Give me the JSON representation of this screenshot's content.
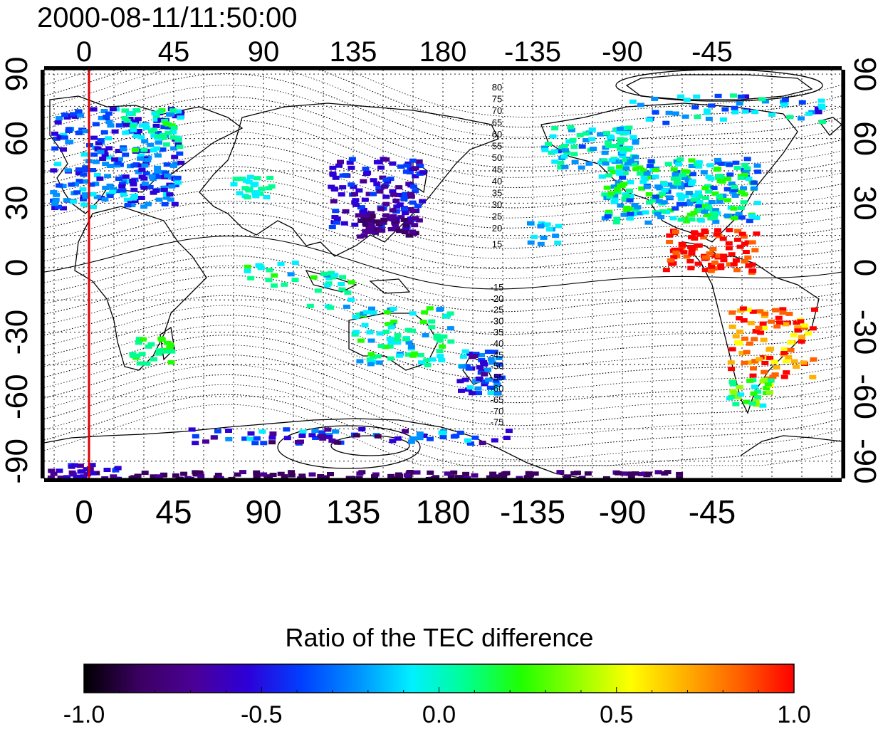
{
  "timestamp": "2000-08-11/11:50:00",
  "map": {
    "lon_tick_labels": [
      "0",
      "45",
      "90",
      "135",
      "180",
      "-135",
      "-90",
      "-45"
    ],
    "lat_tick_labels": [
      "90",
      "60",
      "30",
      "0",
      "-30",
      "-60",
      "-90"
    ],
    "marker_meridian": {
      "longitude": 2.5,
      "color": "#e00000"
    },
    "north_contour_labels": [
      "80",
      "75",
      "70",
      "65",
      "60",
      "55",
      "50",
      "45",
      "40",
      "35",
      "30",
      "25",
      "20",
      "15"
    ],
    "south_contour_labels": [
      "-15",
      "-20",
      "-25",
      "-30",
      "-35",
      "-40",
      "-45",
      "-50",
      "-55",
      "-60",
      "-65",
      "-70",
      "-75"
    ]
  },
  "colorbar": {
    "title": "Ratio of the TEC difference",
    "range": [
      -1.0,
      1.0
    ],
    "tick_labels": [
      "-1.0",
      "-0.5",
      "0.0",
      "0.5",
      "1.0"
    ],
    "colors": [
      "#000000",
      "#3a0060",
      "#4b0095",
      "#2d00d8",
      "#0040ff",
      "#0090ff",
      "#00f0ff",
      "#00ff90",
      "#20ff00",
      "#90ff00",
      "#ffff00",
      "#ffb000",
      "#ff6000",
      "#ff0000"
    ]
  }
}
